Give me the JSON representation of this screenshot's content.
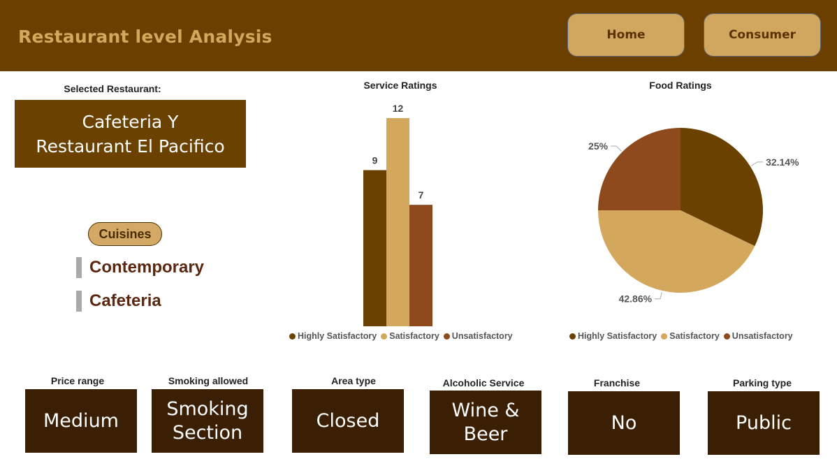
{
  "header": {
    "title": "Restaurant level Analysis",
    "home_label": "Home",
    "consumer_label": "Consumer"
  },
  "selected": {
    "label": "Selected Restaurant:",
    "name_line1": "Cafeteria Y",
    "name_line2": "Restaurant El Pacifico"
  },
  "cuisines": {
    "label": "Cuisines",
    "items": [
      "Contemporary",
      "Cafeteria"
    ]
  },
  "colors": {
    "highly_satisfactory": "#6b4100",
    "satisfactory": "#d3a85c",
    "unsatisfactory": "#8e4a1c",
    "header_bg": "#6b3f00",
    "card_bg": "#3a1f04"
  },
  "chart_data": [
    {
      "type": "bar",
      "title": "Service Ratings",
      "categories": [
        "Highly Satisfactory",
        "Satisfactory",
        "Unsatisfactory"
      ],
      "values": [
        9,
        12,
        7
      ],
      "data_labels": [
        "9",
        "12",
        "7"
      ],
      "legend": [
        "Highly Satisfactory",
        "Satisfactory",
        "Unsatisfactory"
      ],
      "legend_position": "bottom",
      "ylim": [
        0,
        12
      ]
    },
    {
      "type": "pie",
      "title": "Food Ratings",
      "categories": [
        "Highly Satisfactory",
        "Satisfactory",
        "Unsatisfactory"
      ],
      "values": [
        32.14,
        42.86,
        25
      ],
      "data_labels": [
        "32.14%",
        "42.86%",
        "25%"
      ],
      "legend": [
        "Highly Satisfactory",
        "Satisfactory",
        "Unsatisfactory"
      ],
      "legend_position": "bottom"
    }
  ],
  "attributes": [
    {
      "label": "Price range",
      "value_lines": [
        "Medium"
      ]
    },
    {
      "label": "Smoking allowed",
      "value_lines": [
        "Smoking",
        "Section"
      ]
    },
    {
      "label": "Area type",
      "value_lines": [
        "Closed"
      ]
    },
    {
      "label": "Alcoholic Service",
      "value_lines": [
        "Wine &",
        "Beer"
      ]
    },
    {
      "label": "Franchise",
      "value_lines": [
        "No"
      ]
    },
    {
      "label": "Parking type",
      "value_lines": [
        "Public"
      ]
    }
  ]
}
